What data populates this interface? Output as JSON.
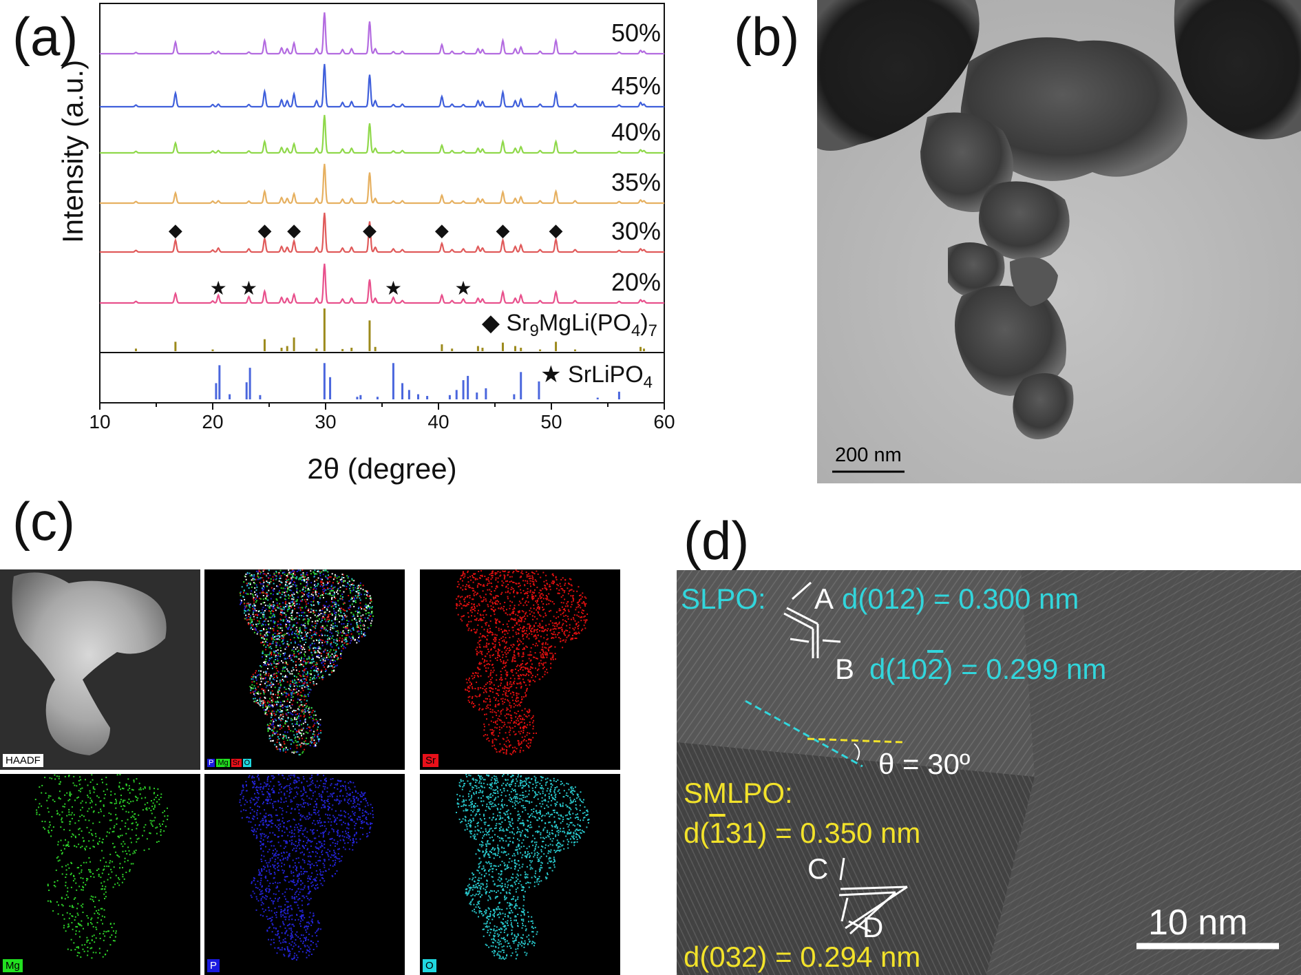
{
  "panels": {
    "a": "(a)",
    "b": "(b)",
    "c": "(c)",
    "d": "(d)"
  },
  "chart_data": {
    "type": "line",
    "xlabel": "2θ (degree)",
    "ylabel": "Intensity (a.u.)",
    "xlim": [
      10,
      60
    ],
    "xticks": [
      10,
      20,
      30,
      40,
      50,
      60
    ],
    "peaks_2theta": [
      13.2,
      16.7,
      20.0,
      20.5,
      23.2,
      24.6,
      26.1,
      26.6,
      27.2,
      29.2,
      29.9,
      31.5,
      32.3,
      33.9,
      34.4,
      36.0,
      36.8,
      40.3,
      41.2,
      42.2,
      43.5,
      43.9,
      45.7,
      46.8,
      47.3,
      49.0,
      50.4,
      52.1,
      56.0,
      57.9,
      58.2
    ],
    "series": [
      {
        "name": "50%",
        "color": "#b36be0",
        "rel_intensity": [
          0.03,
          0.28,
          0.05,
          0.06,
          0.04,
          0.32,
          0.14,
          0.12,
          0.26,
          0.12,
          1.0,
          0.1,
          0.12,
          0.78,
          0.12,
          0.05,
          0.06,
          0.22,
          0.06,
          0.05,
          0.12,
          0.1,
          0.32,
          0.12,
          0.16,
          0.06,
          0.32,
          0.06,
          0.04,
          0.08,
          0.06
        ]
      },
      {
        "name": "45%",
        "color": "#3f5fdb",
        "rel_intensity": [
          0.04,
          0.32,
          0.05,
          0.06,
          0.05,
          0.36,
          0.16,
          0.14,
          0.3,
          0.14,
          1.0,
          0.1,
          0.12,
          0.75,
          0.14,
          0.05,
          0.06,
          0.24,
          0.06,
          0.05,
          0.14,
          0.12,
          0.34,
          0.14,
          0.18,
          0.06,
          0.32,
          0.06,
          0.04,
          0.1,
          0.06
        ]
      },
      {
        "name": "40%",
        "color": "#8fd84a",
        "rel_intensity": [
          0.04,
          0.26,
          0.05,
          0.06,
          0.05,
          0.3,
          0.14,
          0.12,
          0.24,
          0.12,
          1.0,
          0.1,
          0.12,
          0.78,
          0.12,
          0.05,
          0.06,
          0.2,
          0.06,
          0.05,
          0.12,
          0.1,
          0.3,
          0.12,
          0.16,
          0.06,
          0.3,
          0.06,
          0.04,
          0.08,
          0.06
        ]
      },
      {
        "name": "35%",
        "color": "#e6b060",
        "rel_intensity": [
          0.04,
          0.26,
          0.05,
          0.06,
          0.05,
          0.3,
          0.14,
          0.12,
          0.24,
          0.12,
          1.0,
          0.1,
          0.12,
          0.78,
          0.12,
          0.05,
          0.06,
          0.2,
          0.06,
          0.05,
          0.12,
          0.1,
          0.28,
          0.12,
          0.16,
          0.06,
          0.3,
          0.06,
          0.04,
          0.08,
          0.06
        ]
      },
      {
        "name": "30%",
        "color": "#e05a5a",
        "rel_intensity": [
          0.04,
          0.3,
          0.05,
          0.1,
          0.08,
          0.34,
          0.14,
          0.12,
          0.28,
          0.12,
          1.0,
          0.1,
          0.12,
          0.78,
          0.12,
          0.08,
          0.06,
          0.22,
          0.06,
          0.08,
          0.14,
          0.1,
          0.3,
          0.14,
          0.18,
          0.06,
          0.32,
          0.06,
          0.04,
          0.08,
          0.06
        ]
      },
      {
        "name": "20%",
        "color": "#e8508c",
        "rel_intensity": [
          0.04,
          0.24,
          0.05,
          0.2,
          0.16,
          0.3,
          0.14,
          0.12,
          0.22,
          0.12,
          1.0,
          0.1,
          0.12,
          0.6,
          0.12,
          0.14,
          0.06,
          0.2,
          0.06,
          0.1,
          0.12,
          0.1,
          0.28,
          0.12,
          0.2,
          0.06,
          0.28,
          0.06,
          0.04,
          0.08,
          0.06
        ]
      }
    ],
    "references": [
      {
        "name": "Sr9MgLi(PO4)7",
        "marker": "◆",
        "color": "#9c8a1c",
        "lines": [
          [
            13.2,
            0.06
          ],
          [
            16.7,
            0.22
          ],
          [
            20.0,
            0.04
          ],
          [
            24.6,
            0.28
          ],
          [
            26.1,
            0.08
          ],
          [
            26.6,
            0.12
          ],
          [
            27.2,
            0.32
          ],
          [
            29.2,
            0.06
          ],
          [
            29.9,
            1.0
          ],
          [
            31.5,
            0.05
          ],
          [
            32.3,
            0.08
          ],
          [
            33.9,
            0.72
          ],
          [
            34.4,
            0.1
          ],
          [
            40.3,
            0.16
          ],
          [
            41.2,
            0.06
          ],
          [
            43.5,
            0.12
          ],
          [
            43.9,
            0.08
          ],
          [
            45.7,
            0.2
          ],
          [
            46.8,
            0.12
          ],
          [
            47.3,
            0.08
          ],
          [
            49.0,
            0.04
          ],
          [
            50.4,
            0.22
          ],
          [
            52.1,
            0.04
          ],
          [
            57.9,
            0.1
          ],
          [
            58.2,
            0.06
          ]
        ]
      },
      {
        "name": "SrLiPO4",
        "marker": "★",
        "color": "#4a66dd",
        "lines": [
          [
            20.3,
            0.38
          ],
          [
            20.6,
            0.8
          ],
          [
            21.5,
            0.12
          ],
          [
            23.0,
            0.4
          ],
          [
            23.3,
            0.74
          ],
          [
            24.2,
            0.1
          ],
          [
            29.9,
            0.85
          ],
          [
            30.4,
            0.52
          ],
          [
            32.8,
            0.06
          ],
          [
            33.1,
            0.1
          ],
          [
            34.6,
            0.06
          ],
          [
            36.0,
            0.85
          ],
          [
            36.8,
            0.38
          ],
          [
            37.4,
            0.22
          ],
          [
            38.2,
            0.12
          ],
          [
            39.0,
            0.08
          ],
          [
            41.0,
            0.1
          ],
          [
            41.6,
            0.22
          ],
          [
            42.2,
            0.45
          ],
          [
            42.6,
            0.55
          ],
          [
            43.4,
            0.16
          ],
          [
            44.2,
            0.26
          ],
          [
            46.7,
            0.12
          ],
          [
            47.3,
            0.64
          ],
          [
            48.9,
            0.42
          ],
          [
            54.1,
            0.04
          ],
          [
            56.0,
            0.18
          ]
        ]
      }
    ],
    "annotations": {
      "diamond_peaks": [
        16.7,
        24.6,
        27.2,
        33.9,
        40.3,
        45.7,
        50.4
      ],
      "star_peaks": [
        20.5,
        23.2,
        36.0,
        42.2
      ]
    },
    "legend_sub": {
      "sr9": "9",
      "po4": "4",
      "seven": "7"
    },
    "legend_prefix_sr": "Sr",
    "legend_mid_mgli": "MgLi(PO",
    "legend_close": ")",
    "legend_srlipo": "SrLiPO"
  },
  "tem": {
    "scale_bar": "200 nm"
  },
  "eds": {
    "tiles": [
      {
        "label": "HAADF",
        "label_bg": "#ffffff",
        "label_fg": "#000000",
        "dot_color": ""
      },
      {
        "label": "",
        "label_bg": "",
        "label_fg": "",
        "dot_color": "multi"
      },
      {
        "label": "Sr",
        "label_bg": "#e8101a",
        "label_fg": "#000000",
        "dot_color": "#e01010"
      },
      {
        "label": "Mg",
        "label_bg": "#22e020",
        "label_fg": "#000000",
        "dot_color": "#2ed42a"
      },
      {
        "label": "P",
        "label_bg": "#1a1ae0",
        "label_fg": "#ffffff",
        "dot_color": "#2424d8"
      },
      {
        "label": "O",
        "label_bg": "#20d8e0",
        "label_fg": "#000000",
        "dot_color": "#28c8cc"
      }
    ],
    "overlay_legend": [
      {
        "text": "P",
        "bg": "#1a1ae0",
        "fg": "#ffffff"
      },
      {
        "text": "Mg",
        "bg": "#22e020",
        "fg": "#000000"
      },
      {
        "text": "Sr",
        "bg": "#e8101a",
        "fg": "#000000"
      },
      {
        "text": "O",
        "bg": "#20d8e0",
        "fg": "#000000"
      }
    ]
  },
  "hrtem": {
    "slpo_label": "SLPO:",
    "d012": "d(012) = 0.300 nm",
    "d102_pre": "d(10",
    "d102_bar": "2",
    "d102_post": ") = 0.299 nm",
    "angle": "θ = 30º",
    "smlpo_label": "SMLPO:",
    "d131_pre": "d(",
    "d131_bar": "1",
    "d131_post": "31) = 0.350 nm",
    "d032": "d(032) = 0.294 nm",
    "mark_a": "A",
    "mark_b": "B",
    "mark_c": "C",
    "mark_d": "D",
    "scale_bar": "10 nm",
    "cyan": "#32d6dc",
    "yellow": "#f2e22a"
  }
}
